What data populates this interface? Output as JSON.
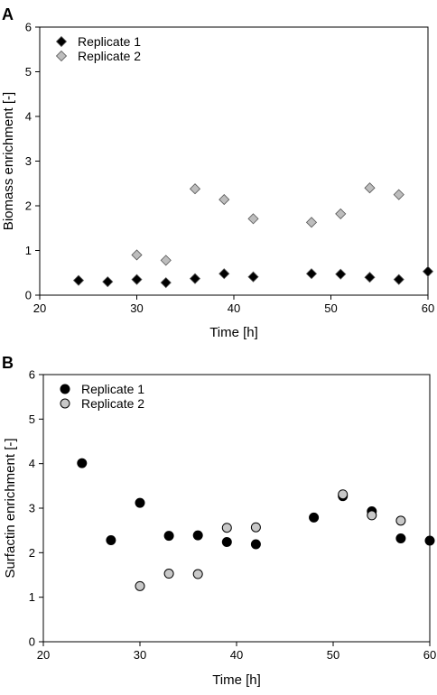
{
  "chart_data": [
    {
      "panel_label": "A",
      "type": "scatter",
      "marker": "diamond",
      "xlabel": "Time [h]",
      "ylabel": "Biomass enrichment [-]",
      "xlim": [
        20,
        60
      ],
      "ylim": [
        0,
        6
      ],
      "x_ticks": [
        20,
        30,
        40,
        50,
        60
      ],
      "y_ticks": [
        0,
        1,
        2,
        3,
        4,
        5,
        6
      ],
      "legend_position": "top-left",
      "series": [
        {
          "name": "Replicate 1",
          "color": "#000000",
          "x": [
            24,
            27,
            30,
            33,
            36,
            39,
            42,
            48,
            51,
            54,
            57,
            60
          ],
          "y": [
            0.33,
            0.3,
            0.35,
            0.28,
            0.37,
            0.48,
            0.41,
            0.48,
            0.47,
            0.4,
            0.35,
            0.53
          ]
        },
        {
          "name": "Replicate 2",
          "color": "#bdbdbd",
          "x": [
            30,
            33,
            36,
            39,
            42,
            48,
            51,
            54,
            57
          ],
          "y": [
            0.9,
            0.78,
            2.38,
            2.14,
            1.71,
            1.63,
            1.82,
            2.4,
            2.25
          ]
        }
      ]
    },
    {
      "panel_label": "B",
      "type": "scatter",
      "marker": "circle",
      "xlabel": "Time [h]",
      "ylabel": "Surfactin enrichment [-]",
      "xlim": [
        20,
        60
      ],
      "ylim": [
        0,
        6
      ],
      "x_ticks": [
        20,
        30,
        40,
        50,
        60
      ],
      "y_ticks": [
        0,
        1,
        2,
        3,
        4,
        5,
        6
      ],
      "legend_position": "top-left",
      "series": [
        {
          "name": "Replicate 1",
          "color": "#000000",
          "x": [
            24,
            27,
            30,
            33,
            36,
            39,
            42,
            48,
            51,
            54,
            57,
            60
          ],
          "y": [
            4.01,
            2.28,
            3.12,
            2.38,
            2.39,
            2.24,
            2.19,
            2.79,
            3.27,
            2.93,
            2.32,
            2.27
          ]
        },
        {
          "name": "Replicate 2",
          "color": "#c8c8c8",
          "x": [
            30,
            33,
            36,
            39,
            42,
            51,
            54,
            57
          ],
          "y": [
            1.25,
            1.53,
            1.52,
            2.56,
            2.57,
            3.31,
            2.84,
            2.72
          ]
        }
      ]
    }
  ]
}
